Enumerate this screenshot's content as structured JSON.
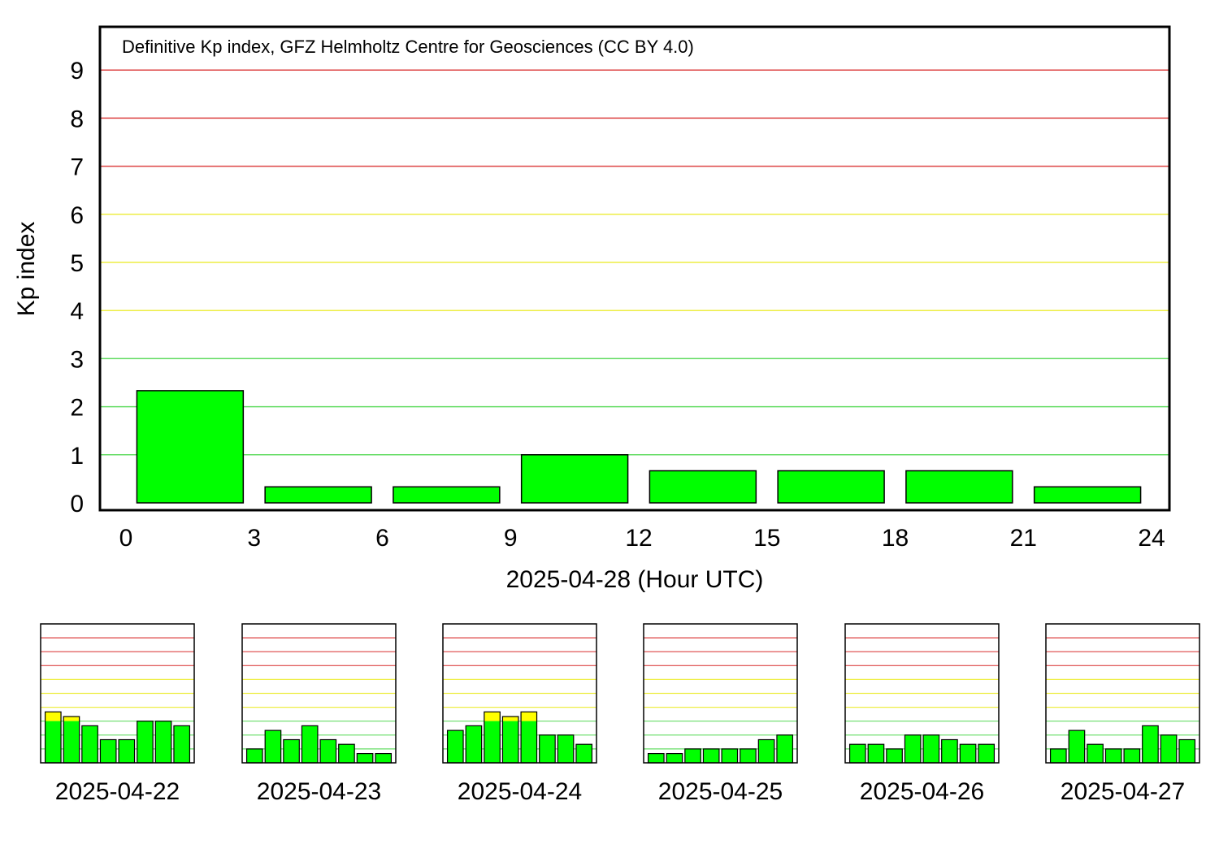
{
  "chart_data": [
    {
      "type": "bar",
      "annotation": "Definitive Kp index, GFZ Helmholtz Centre for Geosciences (CC BY 4.0)",
      "xlabel": "2025-04-28 (Hour UTC)",
      "ylabel": "Kp index",
      "xlim": [
        0,
        24
      ],
      "ylim": [
        0,
        9
      ],
      "xticks": [
        0,
        3,
        6,
        9,
        12,
        15,
        18,
        21,
        24
      ],
      "yticks": [
        0,
        1,
        2,
        3,
        4,
        5,
        6,
        7,
        8,
        9
      ],
      "x": [
        1.5,
        4.5,
        7.5,
        10.5,
        13.5,
        16.5,
        19.5,
        22.5
      ],
      "values": [
        2.333,
        0.333,
        0.333,
        1.0,
        0.667,
        0.667,
        0.667,
        0.333
      ],
      "grid_levels": {
        "green": [
          1,
          2,
          3
        ],
        "yellow": [
          4,
          5,
          6
        ],
        "red": [
          7,
          8,
          9
        ]
      }
    },
    {
      "type": "bar",
      "label": "2025-04-22",
      "values": [
        3.667,
        3.333,
        2.667,
        1.667,
        1.667,
        3.0,
        3.0,
        2.667
      ]
    },
    {
      "type": "bar",
      "label": "2025-04-23",
      "values": [
        1.0,
        2.333,
        1.667,
        2.667,
        1.667,
        1.333,
        0.667,
        0.667
      ]
    },
    {
      "type": "bar",
      "label": "2025-04-24",
      "values": [
        2.333,
        2.667,
        3.667,
        3.333,
        3.667,
        2.0,
        2.0,
        1.333
      ]
    },
    {
      "type": "bar",
      "label": "2025-04-25",
      "values": [
        0.667,
        0.667,
        1.0,
        1.0,
        1.0,
        1.0,
        1.667,
        2.0
      ]
    },
    {
      "type": "bar",
      "label": "2025-04-26",
      "values": [
        1.333,
        1.333,
        1.0,
        2.0,
        2.0,
        1.667,
        1.333,
        1.333
      ]
    },
    {
      "type": "bar",
      "label": "2025-04-27",
      "values": [
        1.0,
        2.333,
        1.333,
        1.0,
        1.0,
        2.667,
        2.0,
        1.667
      ]
    }
  ],
  "colors": {
    "bar_quiet": "#00ff00",
    "bar_active": "#ffff00",
    "grid_green": "#66dd66",
    "grid_yellow": "#eeee44",
    "grid_red": "#dd4444",
    "axis": "#000000"
  }
}
